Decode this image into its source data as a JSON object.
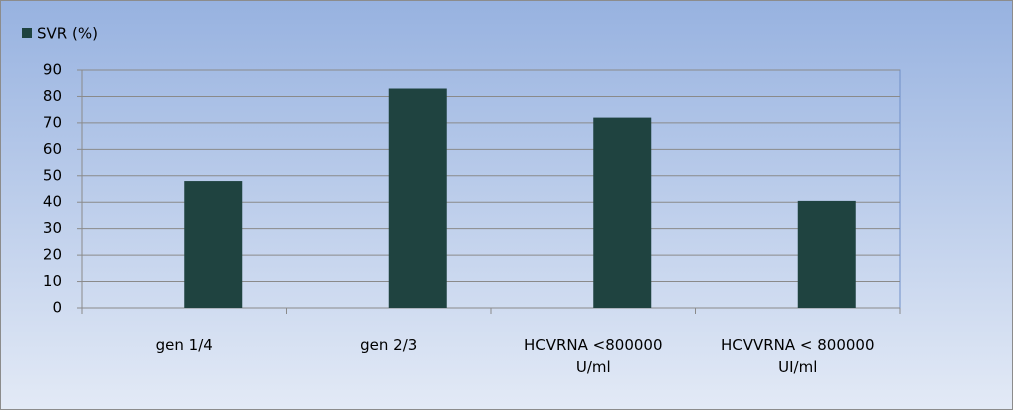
{
  "chart_data": {
    "type": "bar",
    "categories": [
      "gen 1/4",
      "gen 2/3",
      "HCVRNA <800000\nU/ml",
      "HCVVRNA < 800000\nUI/ml"
    ],
    "series": [
      {
        "name": "SVR (%)",
        "color": "#1f4340",
        "values": [
          48,
          83,
          72,
          40.5
        ]
      }
    ],
    "ylim": [
      0,
      90
    ],
    "yticks": [
      0,
      10,
      20,
      30,
      40,
      50,
      60,
      70,
      80,
      90
    ],
    "grid": true,
    "legend": "top-left"
  }
}
